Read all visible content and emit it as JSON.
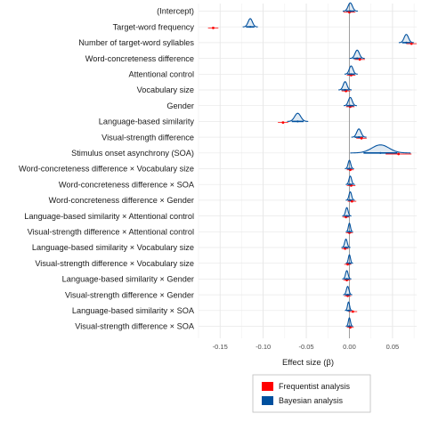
{
  "chart_data": {
    "type": "ridge-interval",
    "xlabel": "Effect size (β)",
    "xlim": [
      -0.175,
      0.078
    ],
    "xticks": [
      -0.15,
      -0.1,
      -0.05,
      0.0,
      0.05
    ],
    "xtick_labels": [
      "-0.15",
      "-0.10",
      "-0.05",
      "0.00",
      "0.05"
    ],
    "reference_line": 0,
    "grid": true,
    "legend_position": "bottom-right",
    "series": [
      {
        "name": "Frequentist analysis",
        "color": "#ff0000"
      },
      {
        "name": "Bayesian analysis",
        "color": "#00509e"
      }
    ],
    "rows": [
      {
        "label": "(Intercept)",
        "freq": 0.0,
        "freq_ci": [
          -0.007,
          0.007
        ],
        "bayes": 0.001,
        "bayes_sd": 0.0025
      },
      {
        "label": "Target-word frequency",
        "freq": -0.158,
        "freq_ci": [
          -0.164,
          -0.152
        ],
        "bayes": -0.115,
        "bayes_sd": 0.0025
      },
      {
        "label": "Number of target-word syllables",
        "freq": 0.072,
        "freq_ci": [
          0.066,
          0.078
        ],
        "bayes": 0.066,
        "bayes_sd": 0.0025
      },
      {
        "label": "Word-concreteness difference",
        "freq": 0.012,
        "freq_ci": [
          0.006,
          0.018
        ],
        "bayes": 0.009,
        "bayes_sd": 0.0025
      },
      {
        "label": "Attentional control",
        "freq": 0.002,
        "freq_ci": [
          -0.003,
          0.007
        ],
        "bayes": 0.002,
        "bayes_sd": 0.0022
      },
      {
        "label": "Vocabulary size",
        "freq": -0.004,
        "freq_ci": [
          -0.009,
          0.001
        ],
        "bayes": -0.005,
        "bayes_sd": 0.0022
      },
      {
        "label": "Gender",
        "freq": 0.001,
        "freq_ci": [
          -0.004,
          0.006
        ],
        "bayes": 0.001,
        "bayes_sd": 0.0022
      },
      {
        "label": "Language-based similarity",
        "freq": -0.077,
        "freq_ci": [
          -0.083,
          -0.071
        ],
        "bayes": -0.06,
        "bayes_sd": 0.0035
      },
      {
        "label": "Visual-strength difference",
        "freq": 0.014,
        "freq_ci": [
          0.008,
          0.02
        ],
        "bayes": 0.011,
        "bayes_sd": 0.0025
      },
      {
        "label": "Stimulus onset asynchrony (SOA)",
        "freq": 0.057,
        "freq_ci": [
          0.042,
          0.072
        ],
        "bayes": 0.036,
        "bayes_sd": 0.01
      },
      {
        "label": "Word-concreteness difference × Vocabulary size",
        "freq": 0.001,
        "freq_ci": [
          -0.003,
          0.005
        ],
        "bayes": 0.0,
        "bayes_sd": 0.0015
      },
      {
        "label": "Word-concreteness difference × SOA",
        "freq": 0.002,
        "freq_ci": [
          -0.003,
          0.007
        ],
        "bayes": 0.001,
        "bayes_sd": 0.0015
      },
      {
        "label": "Word-concreteness difference × Gender",
        "freq": 0.003,
        "freq_ci": [
          -0.002,
          0.008
        ],
        "bayes": 0.001,
        "bayes_sd": 0.0015
      },
      {
        "label": "Language-based similarity × Attentional control",
        "freq": -0.004,
        "freq_ci": [
          -0.008,
          0.0
        ],
        "bayes": -0.003,
        "bayes_sd": 0.0015
      },
      {
        "label": "Visual-strength difference × Attentional control",
        "freq": 0.0,
        "freq_ci": [
          -0.004,
          0.004
        ],
        "bayes": 0.0,
        "bayes_sd": 0.0012
      },
      {
        "label": "Language-based similarity × Vocabulary size",
        "freq": -0.005,
        "freq_ci": [
          -0.009,
          -0.001
        ],
        "bayes": -0.004,
        "bayes_sd": 0.0015
      },
      {
        "label": "Visual-strength difference × Vocabulary size",
        "freq": -0.002,
        "freq_ci": [
          -0.006,
          0.002
        ],
        "bayes": 0.0,
        "bayes_sd": 0.0012
      },
      {
        "label": "Language-based similarity × Gender",
        "freq": -0.003,
        "freq_ci": [
          -0.007,
          0.001
        ],
        "bayes": -0.003,
        "bayes_sd": 0.0015
      },
      {
        "label": "Visual-strength difference × Gender",
        "freq": -0.002,
        "freq_ci": [
          -0.006,
          0.002
        ],
        "bayes": -0.002,
        "bayes_sd": 0.0015
      },
      {
        "label": "Language-based similarity × SOA",
        "freq": 0.004,
        "freq_ci": [
          -0.001,
          0.009
        ],
        "bayes": -0.001,
        "bayes_sd": 0.0012
      },
      {
        "label": "Visual-strength difference × SOA",
        "freq": 0.001,
        "freq_ci": [
          -0.003,
          0.005
        ],
        "bayes": 0.0,
        "bayes_sd": 0.0012
      }
    ]
  }
}
